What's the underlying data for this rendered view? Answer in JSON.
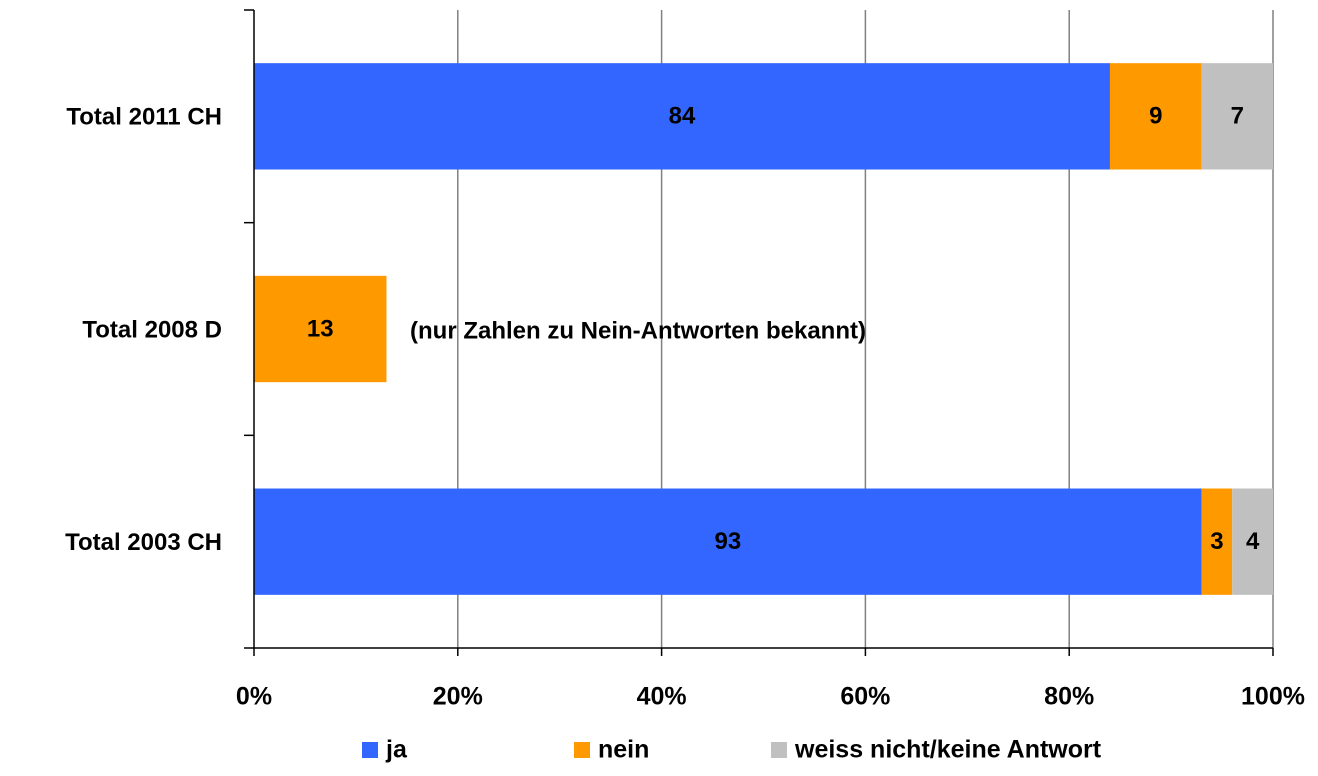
{
  "chart_data": {
    "type": "stacked_barh",
    "categories": [
      "Total 2011 CH",
      "Total 2008 D",
      "Total 2003 CH"
    ],
    "series": [
      {
        "name": "ja",
        "color": "#3366ff",
        "values": [
          84,
          null,
          93
        ]
      },
      {
        "name": "nein",
        "color": "#ff9900",
        "values": [
          9,
          13,
          3
        ]
      },
      {
        "name": "weiss nicht/keine Antwort",
        "color": "#c0c0c0",
        "values": [
          7,
          null,
          4
        ]
      }
    ],
    "xlim": [
      0,
      100
    ],
    "xticks": [
      {
        "value": 0,
        "label": "0%"
      },
      {
        "value": 20,
        "label": "20%"
      },
      {
        "value": 40,
        "label": "40%"
      },
      {
        "value": 60,
        "label": "60%"
      },
      {
        "value": 80,
        "label": "80%"
      },
      {
        "value": 100,
        "label": "100%"
      }
    ],
    "grid": true,
    "legend": "bottom",
    "annotations": [
      "(nur Zahlen zu Nein-Antworten bekannt)"
    ]
  }
}
